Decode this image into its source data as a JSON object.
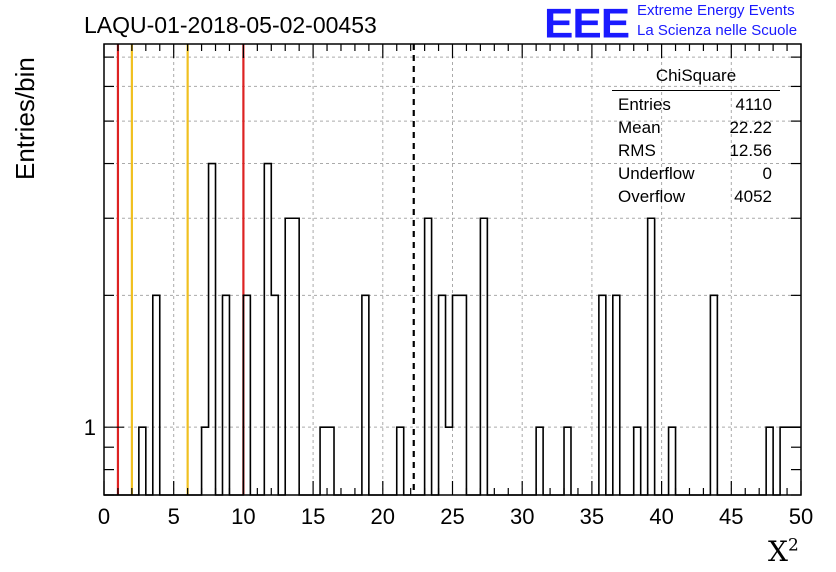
{
  "title": "LAQU-01-2018-05-02-00453",
  "logo": {
    "text": "EEE",
    "line1": "Extreme Energy Events",
    "line2": "La Scienza nelle Scuole",
    "color": "#1a1aff"
  },
  "stats": {
    "name": "ChiSquare",
    "rows": [
      {
        "label": "Entries",
        "value": "4110"
      },
      {
        "label": "Mean",
        "value": "22.22"
      },
      {
        "label": "RMS",
        "value": "12.56"
      },
      {
        "label": "Underflow",
        "value": "0"
      },
      {
        "label": "Overflow",
        "value": "4052"
      }
    ]
  },
  "chart_data": {
    "type": "bar",
    "title": "LAQU-01-2018-05-02-00453",
    "xlabel": "X",
    "xlabel_sup": "2",
    "ylabel": "Entries/bin",
    "xlim": [
      0,
      50
    ],
    "ylim": [
      0.7,
      7.5
    ],
    "yscale": "log",
    "grid": true,
    "bin_width": 0.5,
    "x_ticks": [
      "0",
      "5",
      "10",
      "15",
      "20",
      "25",
      "30",
      "35",
      "40",
      "45",
      "50"
    ],
    "y_tick_labels": [
      {
        "value": 1,
        "label": "1"
      }
    ],
    "bins": [
      {
        "x": 2.5,
        "value": 1
      },
      {
        "x": 3.5,
        "value": 2
      },
      {
        "x": 7.0,
        "value": 1
      },
      {
        "x": 7.5,
        "value": 4
      },
      {
        "x": 8.5,
        "value": 2
      },
      {
        "x": 10.0,
        "value": 2
      },
      {
        "x": 11.5,
        "value": 4
      },
      {
        "x": 12.0,
        "value": 2
      },
      {
        "x": 13.0,
        "value": 3
      },
      {
        "x": 13.5,
        "value": 3
      },
      {
        "x": 15.5,
        "value": 1
      },
      {
        "x": 16.0,
        "value": 1
      },
      {
        "x": 18.5,
        "value": 2
      },
      {
        "x": 21.0,
        "value": 1
      },
      {
        "x": 23.0,
        "value": 3
      },
      {
        "x": 24.0,
        "value": 2
      },
      {
        "x": 24.5,
        "value": 1
      },
      {
        "x": 25.0,
        "value": 2
      },
      {
        "x": 25.5,
        "value": 2
      },
      {
        "x": 27.0,
        "value": 3
      },
      {
        "x": 31.0,
        "value": 1
      },
      {
        "x": 33.0,
        "value": 1
      },
      {
        "x": 35.5,
        "value": 2
      },
      {
        "x": 36.5,
        "value": 2
      },
      {
        "x": 38.0,
        "value": 1
      },
      {
        "x": 39.0,
        "value": 3
      },
      {
        "x": 40.5,
        "value": 1
      },
      {
        "x": 43.5,
        "value": 2
      },
      {
        "x": 47.5,
        "value": 1
      },
      {
        "x": 48.5,
        "value": 1
      },
      {
        "x": 49.0,
        "value": 1
      },
      {
        "x": 49.5,
        "value": 1
      }
    ],
    "vlines": [
      {
        "x": 1.0,
        "color": "#dd2222",
        "style": "solid"
      },
      {
        "x": 2.0,
        "color": "#f0c020",
        "style": "solid"
      },
      {
        "x": 6.0,
        "color": "#f0c020",
        "style": "solid"
      },
      {
        "x": 10.0,
        "color": "#dd2222",
        "style": "solid"
      },
      {
        "x": 22.22,
        "color": "#000000",
        "style": "dashed"
      }
    ]
  }
}
